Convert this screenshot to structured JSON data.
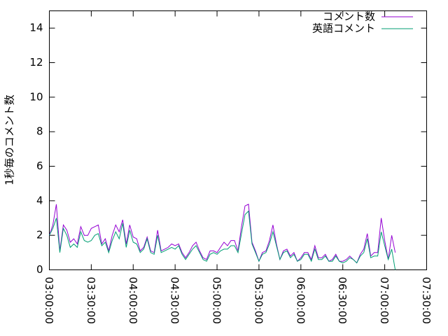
{
  "chart_data": {
    "type": "line",
    "ylabel": "1秒毎のコメント数",
    "x": [
      "03:00:00",
      "03:02:30",
      "03:05:00",
      "03:07:30",
      "03:10:00",
      "03:12:30",
      "03:15:00",
      "03:17:30",
      "03:20:00",
      "03:22:30",
      "03:25:00",
      "03:27:30",
      "03:30:00",
      "03:32:30",
      "03:35:00",
      "03:37:30",
      "03:40:00",
      "03:42:30",
      "03:45:00",
      "03:47:30",
      "03:50:00",
      "03:52:30",
      "03:55:00",
      "03:57:30",
      "04:00:00",
      "04:02:30",
      "04:05:00",
      "04:07:30",
      "04:10:00",
      "04:12:30",
      "04:15:00",
      "04:17:30",
      "04:20:00",
      "04:22:30",
      "04:25:00",
      "04:27:30",
      "04:30:00",
      "04:32:30",
      "04:35:00",
      "04:37:30",
      "04:40:00",
      "04:42:30",
      "04:45:00",
      "04:47:30",
      "04:50:00",
      "04:52:30",
      "04:55:00",
      "04:57:30",
      "05:00:00",
      "05:02:30",
      "05:05:00",
      "05:07:30",
      "05:10:00",
      "05:12:30",
      "05:15:00",
      "05:17:30",
      "05:20:00",
      "05:22:30",
      "05:25:00",
      "05:27:30",
      "05:30:00",
      "05:32:30",
      "05:35:00",
      "05:37:30",
      "05:40:00",
      "05:42:30",
      "05:45:00",
      "05:47:30",
      "05:50:00",
      "05:52:30",
      "05:55:00",
      "05:57:30",
      "06:00:00",
      "06:02:30",
      "06:05:00",
      "06:07:30",
      "06:10:00",
      "06:12:30",
      "06:15:00",
      "06:17:30",
      "06:20:00",
      "06:22:30",
      "06:25:00",
      "06:27:30",
      "06:30:00",
      "06:32:30",
      "06:35:00",
      "06:37:30",
      "06:40:00",
      "06:42:30",
      "06:45:00",
      "06:47:30",
      "06:50:00",
      "06:52:30",
      "06:55:00",
      "06:57:30",
      "07:00:00",
      "07:02:30",
      "07:05:00",
      "07:07:30"
    ],
    "series": [
      {
        "name": "コメント数",
        "color": "#9400d3",
        "values": [
          2.0,
          2.6,
          3.8,
          1.1,
          2.6,
          2.3,
          1.6,
          1.8,
          1.5,
          2.5,
          2.0,
          2.0,
          2.4,
          2.5,
          2.6,
          1.5,
          1.8,
          1.1,
          2.0,
          2.6,
          2.2,
          2.9,
          1.5,
          2.6,
          1.9,
          1.8,
          1.1,
          1.3,
          1.9,
          1.1,
          1.0,
          2.3,
          1.1,
          1.2,
          1.3,
          1.5,
          1.4,
          1.5,
          1.0,
          0.7,
          1.0,
          1.4,
          1.6,
          1.1,
          0.7,
          0.6,
          1.1,
          1.1,
          1.0,
          1.3,
          1.6,
          1.4,
          1.7,
          1.7,
          1.1,
          2.5,
          3.7,
          3.8,
          1.6,
          1.1,
          0.5,
          1.0,
          1.1,
          1.7,
          2.6,
          1.5,
          0.6,
          1.1,
          1.2,
          0.8,
          1.0,
          0.5,
          0.7,
          1.0,
          1.0,
          0.6,
          1.4,
          0.7,
          0.7,
          0.9,
          0.5,
          0.6,
          0.9,
          0.5,
          0.5,
          0.6,
          0.8,
          0.6,
          0.4,
          0.9,
          1.2,
          2.1,
          0.8,
          1.0,
          1.0,
          3.0,
          1.7,
          0.6,
          2.0,
          1.0
        ]
      },
      {
        "name": "英語コメント",
        "color": "#009e73",
        "values": [
          2.0,
          2.4,
          3.0,
          1.0,
          2.4,
          2.0,
          1.3,
          1.5,
          1.3,
          2.2,
          1.7,
          1.6,
          1.7,
          2.0,
          2.1,
          1.4,
          1.6,
          1.0,
          1.7,
          2.2,
          1.8,
          2.7,
          1.3,
          2.3,
          1.6,
          1.5,
          1.0,
          1.2,
          1.8,
          1.0,
          0.9,
          2.0,
          1.0,
          1.1,
          1.2,
          1.3,
          1.2,
          1.4,
          0.9,
          0.6,
          0.9,
          1.2,
          1.4,
          1.0,
          0.6,
          0.5,
          0.9,
          1.0,
          0.9,
          1.1,
          1.2,
          1.2,
          1.4,
          1.4,
          1.0,
          2.1,
          3.2,
          3.4,
          1.5,
          1.0,
          0.5,
          0.9,
          1.0,
          1.5,
          2.2,
          1.4,
          0.6,
          1.0,
          1.1,
          0.7,
          0.9,
          0.5,
          0.6,
          0.9,
          0.9,
          0.5,
          1.2,
          0.6,
          0.6,
          0.8,
          0.5,
          0.5,
          0.8,
          0.5,
          0.4,
          0.5,
          0.7,
          0.6,
          0.4,
          0.8,
          1.0,
          1.8,
          0.7,
          0.8,
          0.8,
          2.2,
          1.4,
          0.6,
          1.2,
          0.0
        ]
      }
    ],
    "xlim": [
      "03:00:00",
      "07:30:00"
    ],
    "xticks": [
      "03:00:00",
      "03:30:00",
      "04:00:00",
      "04:30:00",
      "05:00:00",
      "05:30:00",
      "06:00:00",
      "06:30:00",
      "07:00:00",
      "07:30:00"
    ],
    "ylim": [
      0,
      15
    ],
    "yticks": [
      0,
      2,
      4,
      6,
      8,
      10,
      12,
      14
    ],
    "legend": "top-right"
  }
}
